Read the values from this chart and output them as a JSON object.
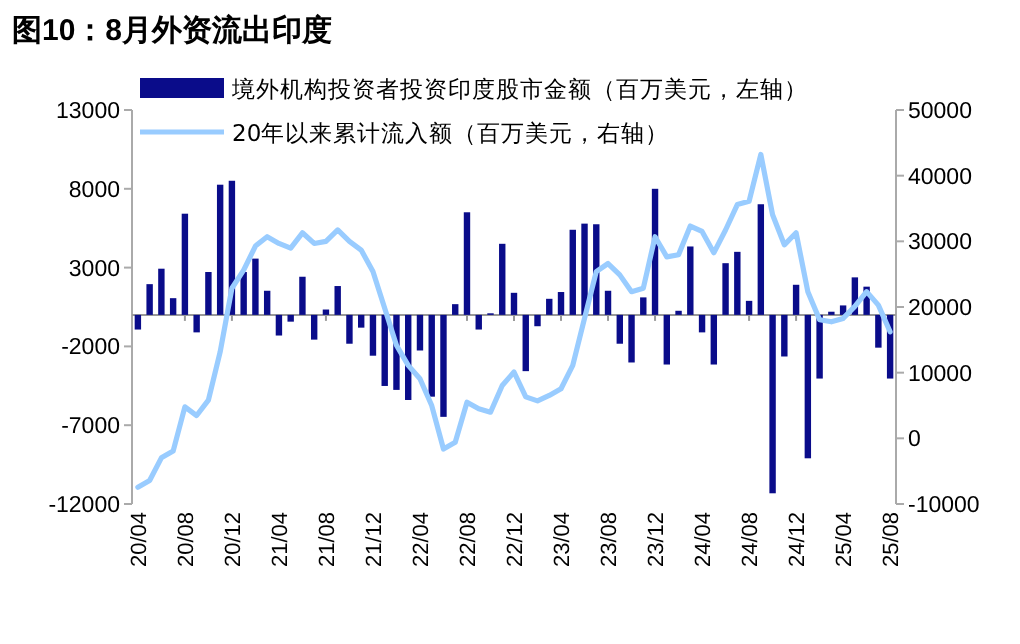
{
  "chart_data": {
    "type": "bar",
    "title": "图10：8月外资流出印度",
    "categories": [
      "20/04",
      null,
      null,
      null,
      "20/08",
      null,
      null,
      null,
      "20/12",
      null,
      null,
      null,
      "21/04",
      null,
      null,
      null,
      "21/08",
      null,
      null,
      null,
      "21/12",
      null,
      null,
      null,
      "22/04",
      null,
      null,
      null,
      "22/08",
      null,
      null,
      null,
      "22/12",
      null,
      null,
      null,
      "23/04",
      null,
      null,
      null,
      "23/08",
      null,
      null,
      null,
      "23/12",
      null,
      null,
      null,
      "24/04",
      null,
      null,
      null,
      "24/08",
      null,
      null,
      null,
      "24/12",
      null,
      null,
      null,
      "25/04",
      null,
      null,
      null,
      "25/08"
    ],
    "series": [
      {
        "name": "境外机构投资者投资印度股市金额（百万美元，左轴）",
        "color": "#0a0c8a",
        "values": [
          -930,
          1950,
          2930,
          1060,
          6420,
          -1110,
          2720,
          8260,
          8510,
          2720,
          3570,
          1530,
          -1310,
          -430,
          2420,
          -1570,
          340,
          1830,
          -1830,
          -810,
          -2590,
          -4510,
          -4760,
          -5400,
          -2260,
          -5190,
          -6470,
          680,
          6510,
          -930,
          100,
          4510,
          1400,
          -3570,
          -720,
          1020,
          1450,
          5400,
          5790,
          5750,
          1530,
          -1830,
          -3020,
          1110,
          8000,
          -3150,
          260,
          4340,
          -1110,
          -3150,
          3280,
          4000,
          890,
          7020,
          -11320,
          -2640,
          1910,
          -9100,
          -4040,
          200,
          600,
          2380,
          1790,
          -2080,
          -4040
        ]
      },
      {
        "name": "20年以来累计流入额（百万美元，右轴）",
        "type": "line",
        "axis": "y2",
        "color": "#99ccff",
        "values": [
          -7440,
          -6430,
          -2970,
          -1940,
          4800,
          3470,
          5810,
          13160,
          22850,
          25610,
          29280,
          30700,
          29680,
          28970,
          31300,
          29680,
          29990,
          31730,
          29990,
          28670,
          25400,
          19800,
          14170,
          11110,
          9080,
          4990,
          -1620,
          -610,
          5510,
          4490,
          3980,
          8050,
          10100,
          6320,
          5710,
          6530,
          7550,
          11120,
          18260,
          25400,
          26620,
          24890,
          22340,
          22850,
          30700,
          27640,
          27950,
          32330,
          31500,
          28250,
          31730,
          35600,
          36100,
          43240,
          34060,
          29470,
          31300,
          22340,
          18050,
          17750,
          18260,
          20100,
          22340,
          20290,
          16220
        ]
      }
    ],
    "ylim": [
      -12000,
      13000
    ],
    "yticks": [
      -12000,
      -7000,
      -2000,
      3000,
      8000,
      13000
    ],
    "y2lim": [
      -10000,
      50000
    ],
    "y2ticks": [
      -10000,
      0,
      10000,
      20000,
      30000,
      40000,
      50000
    ],
    "legend": "top"
  }
}
